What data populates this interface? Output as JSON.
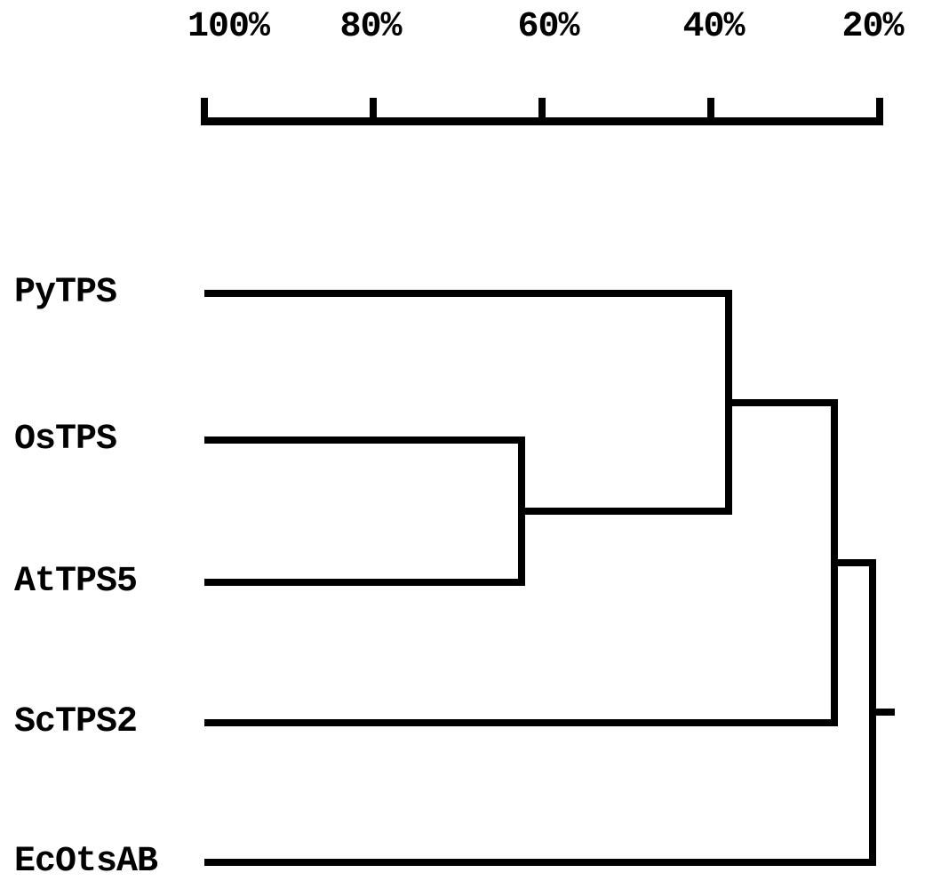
{
  "figure": {
    "background_color": "#ffffff",
    "line_color": "#000000"
  },
  "chart_data": {
    "type": "dendrogram",
    "orientation": "horizontal",
    "title": "",
    "axis": {
      "position": "top",
      "unit": "%",
      "tick_labels": [
        "100%",
        "80%",
        "60%",
        "40%",
        "20%"
      ],
      "tick_values": [
        100,
        80,
        60,
        40,
        20
      ],
      "direction": "similarity decreases to the right",
      "range_shown": [
        100,
        20
      ]
    },
    "taxa": [
      "PyTPS",
      "OsTPS",
      "AtTPS5",
      "ScTPS2",
      "EcOtsAB"
    ],
    "tree": {
      "join_pct": 20.8,
      "children": [
        {
          "join_pct": 25.4,
          "children": [
            {
              "join_pct": 37.9,
              "children": [
                {
                  "leaf": "PyTPS"
                },
                {
                  "join_pct": 62.4,
                  "children": [
                    {
                      "leaf": "OsTPS"
                    },
                    {
                      "leaf": "AtTPS5"
                    }
                  ]
                }
              ]
            },
            {
              "leaf": "ScTPS2"
            }
          ]
        },
        {
          "leaf": "EcOtsAB"
        }
      ]
    },
    "root_stub_pct": 18.2,
    "joins": [
      {
        "members": [
          "OsTPS",
          "AtTPS5"
        ],
        "similarity_pct": 62
      },
      {
        "members": [
          "PyTPS",
          "(OsTPS,AtTPS5)"
        ],
        "similarity_pct": 38
      },
      {
        "members": [
          "(PyTPS,(OsTPS,AtTPS5))",
          "ScTPS2"
        ],
        "similarity_pct": 25
      },
      {
        "members": [
          "((PyTPS,(OsTPS,AtTPS5)),ScTPS2)",
          "EcOtsAB"
        ],
        "similarity_pct": 21
      }
    ]
  }
}
